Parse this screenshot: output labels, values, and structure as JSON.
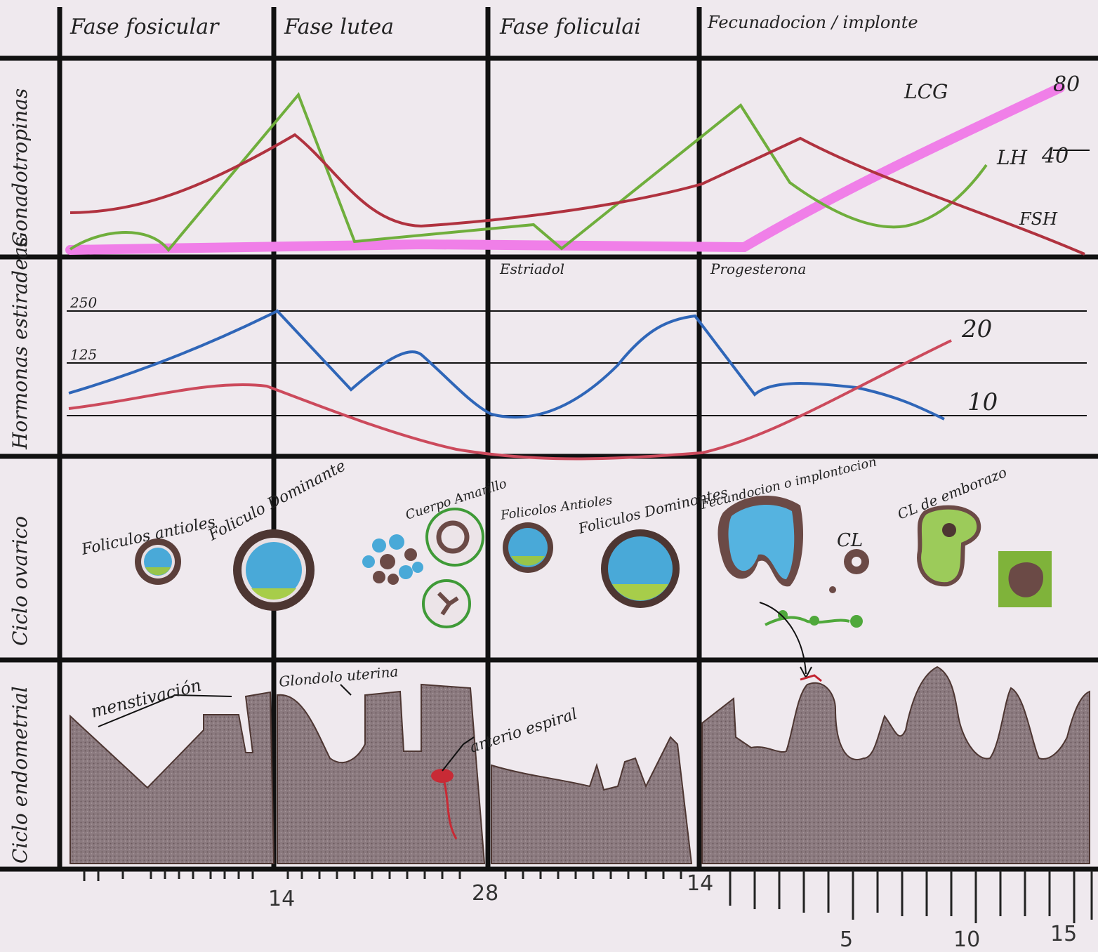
{
  "phases": [
    "Fase fosicular",
    "Fase lutea",
    "Fase foliculai",
    "Fecunadocion / implonte"
  ],
  "rows": [
    "Gonadotropinas",
    "Hormonas estiradeas",
    "Ciclo ovarico",
    "Ciclo endometrial"
  ],
  "gonadotropinas": {
    "labels": {
      "lcg": "LCG",
      "lh": "LH",
      "fsh": "FSH"
    },
    "scale": {
      "top": "80",
      "mid": "40"
    },
    "colors": {
      "lh": "#6fae3c",
      "fsh": "#b0323f",
      "lcg": "#f07fe8"
    }
  },
  "hormonas": {
    "labels": {
      "estradiol": "Estriadol",
      "progesterona": "Progesterona"
    },
    "scale_left": {
      "high": "250",
      "mid": "125"
    },
    "scale_right": {
      "high": "20",
      "low": "10"
    },
    "colors": {
      "estradiol": "#2f66b8",
      "progesterona": "#cc4a5c"
    }
  },
  "ovario": {
    "labels": {
      "antrales1": "Foliculos antioles",
      "dominante1": "Foliculo Dominante",
      "cuerpo": "Cuerpo Amarillo",
      "antrales2": "Folicolos Antioles",
      "dominante2": "Foliculos Dominontes",
      "fecundacion": "Fecundocion o implontocion",
      "cl": "CL",
      "cl_embarazo": "CL de emborazo"
    }
  },
  "endometrio": {
    "labels": {
      "menstruacion": "menstivación",
      "glandula": "Glondolo uterina",
      "arteria": "arterio espiral"
    }
  },
  "axis": {
    "day_labels": [
      "14",
      "28",
      "14"
    ],
    "week_labels": [
      "5",
      "10",
      "15"
    ]
  }
}
